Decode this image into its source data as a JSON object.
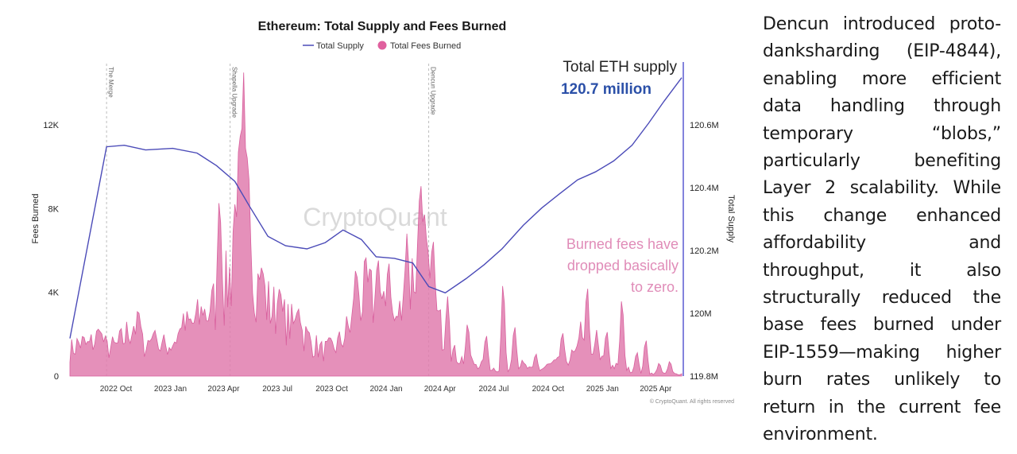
{
  "chart_data": {
    "type": "area",
    "title": "Ethereum: Total Supply and Fees Burned",
    "legend": {
      "placement": "top-center",
      "entries": [
        {
          "name": "Total Supply",
          "symbol": "line",
          "color": "#4b4bb8"
        },
        {
          "name": "Total Fees Burned",
          "symbol": "dot",
          "color": "#e0609e"
        }
      ]
    },
    "ylabel_left": "Fees Burned",
    "ylabel_right": "Total Supply",
    "y_left_ticks": [
      "0",
      "4K",
      "8K",
      "12K"
    ],
    "y_left_range": [
      0,
      15000
    ],
    "y_right_ticks": [
      "119.8M",
      "120M",
      "120.2M",
      "120.4M",
      "120.6M"
    ],
    "y_right_range": [
      119.8,
      120.8
    ],
    "x_ticks": [
      "2022 Oct",
      "2023 Jan",
      "2023 Apr",
      "2023 Jul",
      "2023 Oct",
      "2024 Jan",
      "2024 Apr",
      "2024 Jul",
      "2024 Oct",
      "2025 Jan",
      "2025 Apr"
    ],
    "x_range": [
      "2022-07-15",
      "2025-05-15"
    ],
    "grid": false,
    "events": [
      {
        "label": "The Merge",
        "date": "2022-09-15"
      },
      {
        "label": "Shapella Upgrade",
        "date": "2023-04-12"
      },
      {
        "label": "Dencun Upgrade",
        "date": "2024-03-13"
      }
    ],
    "watermark": "CryptoQuant",
    "annotations": {
      "supply_label": "Total ETH supply",
      "supply_value": "120.7 million",
      "fees_note_1": "Burned fees have",
      "fees_note_2": "dropped basically",
      "fees_note_3": "to zero."
    },
    "copyright": "© CryptoQuant. All rights reserved",
    "series": [
      {
        "name": "Total Supply",
        "axis": "right",
        "points": [
          [
            "2022-07-15",
            119.92
          ],
          [
            "2022-09-15",
            120.53
          ],
          [
            "2022-10-15",
            120.535
          ],
          [
            "2022-11-20",
            120.52
          ],
          [
            "2023-01-05",
            120.525
          ],
          [
            "2023-02-15",
            120.51
          ],
          [
            "2023-03-20",
            120.47
          ],
          [
            "2023-04-20",
            120.42
          ],
          [
            "2023-05-15",
            120.34
          ],
          [
            "2023-06-15",
            120.245
          ],
          [
            "2023-07-15",
            120.215
          ],
          [
            "2023-08-20",
            120.205
          ],
          [
            "2023-09-20",
            120.225
          ],
          [
            "2023-10-20",
            120.265
          ],
          [
            "2023-11-20",
            120.235
          ],
          [
            "2023-12-15",
            120.18
          ],
          [
            "2024-01-15",
            120.175
          ],
          [
            "2024-02-15",
            120.16
          ],
          [
            "2024-03-13",
            120.085
          ],
          [
            "2024-04-10",
            120.065
          ],
          [
            "2024-05-15",
            120.11
          ],
          [
            "2024-06-15",
            120.155
          ],
          [
            "2024-07-15",
            120.205
          ],
          [
            "2024-08-20",
            120.28
          ],
          [
            "2024-09-20",
            120.335
          ],
          [
            "2024-10-20",
            120.38
          ],
          [
            "2024-11-20",
            120.425
          ],
          [
            "2024-12-20",
            120.45
          ],
          [
            "2025-01-20",
            120.485
          ],
          [
            "2025-02-20",
            120.535
          ],
          [
            "2025-03-20",
            120.605
          ],
          [
            "2025-04-15",
            120.675
          ],
          [
            "2025-05-15",
            120.75
          ]
        ]
      },
      {
        "name": "Total Fees Burned",
        "axis": "left",
        "points": [
          [
            "2022-07-15",
            1200
          ],
          [
            "2022-08-01",
            1600
          ],
          [
            "2022-08-15",
            1400
          ],
          [
            "2022-09-01",
            1900
          ],
          [
            "2022-09-15",
            1300
          ],
          [
            "2022-10-01",
            1400
          ],
          [
            "2022-10-15",
            1800
          ],
          [
            "2022-11-01",
            2600
          ],
          [
            "2022-11-15",
            1500
          ],
          [
            "2022-12-01",
            1700
          ],
          [
            "2022-12-15",
            1400
          ],
          [
            "2023-01-01",
            1500
          ],
          [
            "2023-01-15",
            2000
          ],
          [
            "2023-02-01",
            2400
          ],
          [
            "2023-02-15",
            2600
          ],
          [
            "2023-03-01",
            3000
          ],
          [
            "2023-03-15",
            3300
          ],
          [
            "2023-04-01",
            3800
          ],
          [
            "2023-04-15",
            5000
          ],
          [
            "2023-05-01",
            9000
          ],
          [
            "2023-05-15",
            5500
          ],
          [
            "2023-06-01",
            4200
          ],
          [
            "2023-06-15",
            3400
          ],
          [
            "2023-07-01",
            3000
          ],
          [
            "2023-07-15",
            2600
          ],
          [
            "2023-08-01",
            2300
          ],
          [
            "2023-08-15",
            2000
          ],
          [
            "2023-09-01",
            1500
          ],
          [
            "2023-09-15",
            1200
          ],
          [
            "2023-10-01",
            1300
          ],
          [
            "2023-10-15",
            1600
          ],
          [
            "2023-11-01",
            2400
          ],
          [
            "2023-11-15",
            3500
          ],
          [
            "2023-12-01",
            4000
          ],
          [
            "2023-12-15",
            3200
          ],
          [
            "2024-01-01",
            2800
          ],
          [
            "2024-01-15",
            2600
          ],
          [
            "2024-02-01",
            3200
          ],
          [
            "2024-02-15",
            4800
          ],
          [
            "2024-03-01",
            6000
          ],
          [
            "2024-03-13",
            4200
          ],
          [
            "2024-04-01",
            2400
          ],
          [
            "2024-04-15",
            1400
          ],
          [
            "2024-05-01",
            900
          ],
          [
            "2024-05-15",
            700
          ],
          [
            "2024-06-01",
            600
          ],
          [
            "2024-06-15",
            500
          ],
          [
            "2024-07-01",
            350
          ],
          [
            "2024-07-15",
            280
          ],
          [
            "2024-08-01",
            400
          ],
          [
            "2024-08-15",
            600
          ],
          [
            "2024-09-01",
            300
          ],
          [
            "2024-09-15",
            250
          ],
          [
            "2024-10-01",
            500
          ],
          [
            "2024-10-15",
            600
          ],
          [
            "2024-11-01",
            800
          ],
          [
            "2024-11-15",
            1000
          ],
          [
            "2024-12-01",
            1100
          ],
          [
            "2024-12-15",
            900
          ],
          [
            "2025-01-01",
            700
          ],
          [
            "2025-01-15",
            500
          ],
          [
            "2025-02-01",
            400
          ],
          [
            "2025-02-15",
            300
          ],
          [
            "2025-03-01",
            200
          ],
          [
            "2025-03-15",
            150
          ],
          [
            "2025-04-01",
            120
          ],
          [
            "2025-04-15",
            110
          ],
          [
            "2025-05-01",
            100
          ],
          [
            "2025-05-15",
            100
          ]
        ],
        "spikes": [
          [
            "2022-09-05",
            2200
          ],
          [
            "2022-11-09",
            3000
          ],
          [
            "2022-12-05",
            2200
          ],
          [
            "2023-01-20",
            2300
          ],
          [
            "2023-02-25",
            2900
          ],
          [
            "2023-03-12",
            3000
          ],
          [
            "2023-03-25",
            9200
          ],
          [
            "2023-04-20",
            8200
          ],
          [
            "2023-05-05",
            14500
          ],
          [
            "2023-05-12",
            11200
          ],
          [
            "2023-06-05",
            5400
          ],
          [
            "2023-07-05",
            4400
          ],
          [
            "2023-08-05",
            3400
          ],
          [
            "2023-11-11",
            5400
          ],
          [
            "2023-12-18",
            6000
          ],
          [
            "2024-01-05",
            5900
          ],
          [
            "2024-02-05",
            6800
          ],
          [
            "2024-02-28",
            9700
          ],
          [
            "2024-03-05",
            8200
          ],
          [
            "2024-03-20",
            7000
          ],
          [
            "2024-04-14",
            3800
          ],
          [
            "2024-05-18",
            2800
          ],
          [
            "2024-06-18",
            2200
          ],
          [
            "2024-07-17",
            5100
          ],
          [
            "2024-08-05",
            2700
          ],
          [
            "2024-09-10",
            1200
          ],
          [
            "2024-10-25",
            2300
          ],
          [
            "2024-11-25",
            2600
          ],
          [
            "2024-12-06",
            4800
          ],
          [
            "2024-12-22",
            2200
          ],
          [
            "2025-01-08",
            2400
          ],
          [
            "2025-02-03",
            4200
          ],
          [
            "2025-02-28",
            1300
          ],
          [
            "2025-03-15",
            2000
          ],
          [
            "2025-04-07",
            700
          ],
          [
            "2025-04-25",
            800
          ]
        ]
      }
    ]
  },
  "side_text": "Dencun introduced proto-danksharding (EIP-4844), enabling more efficient data handling through temporary “blobs,” particularly benefiting Layer 2 scalability. While this change enhanced affordability and throughput, it also structurally reduced the base fees burned under EIP-1559—making higher burn rates unlikely to return in the current fee environment."
}
